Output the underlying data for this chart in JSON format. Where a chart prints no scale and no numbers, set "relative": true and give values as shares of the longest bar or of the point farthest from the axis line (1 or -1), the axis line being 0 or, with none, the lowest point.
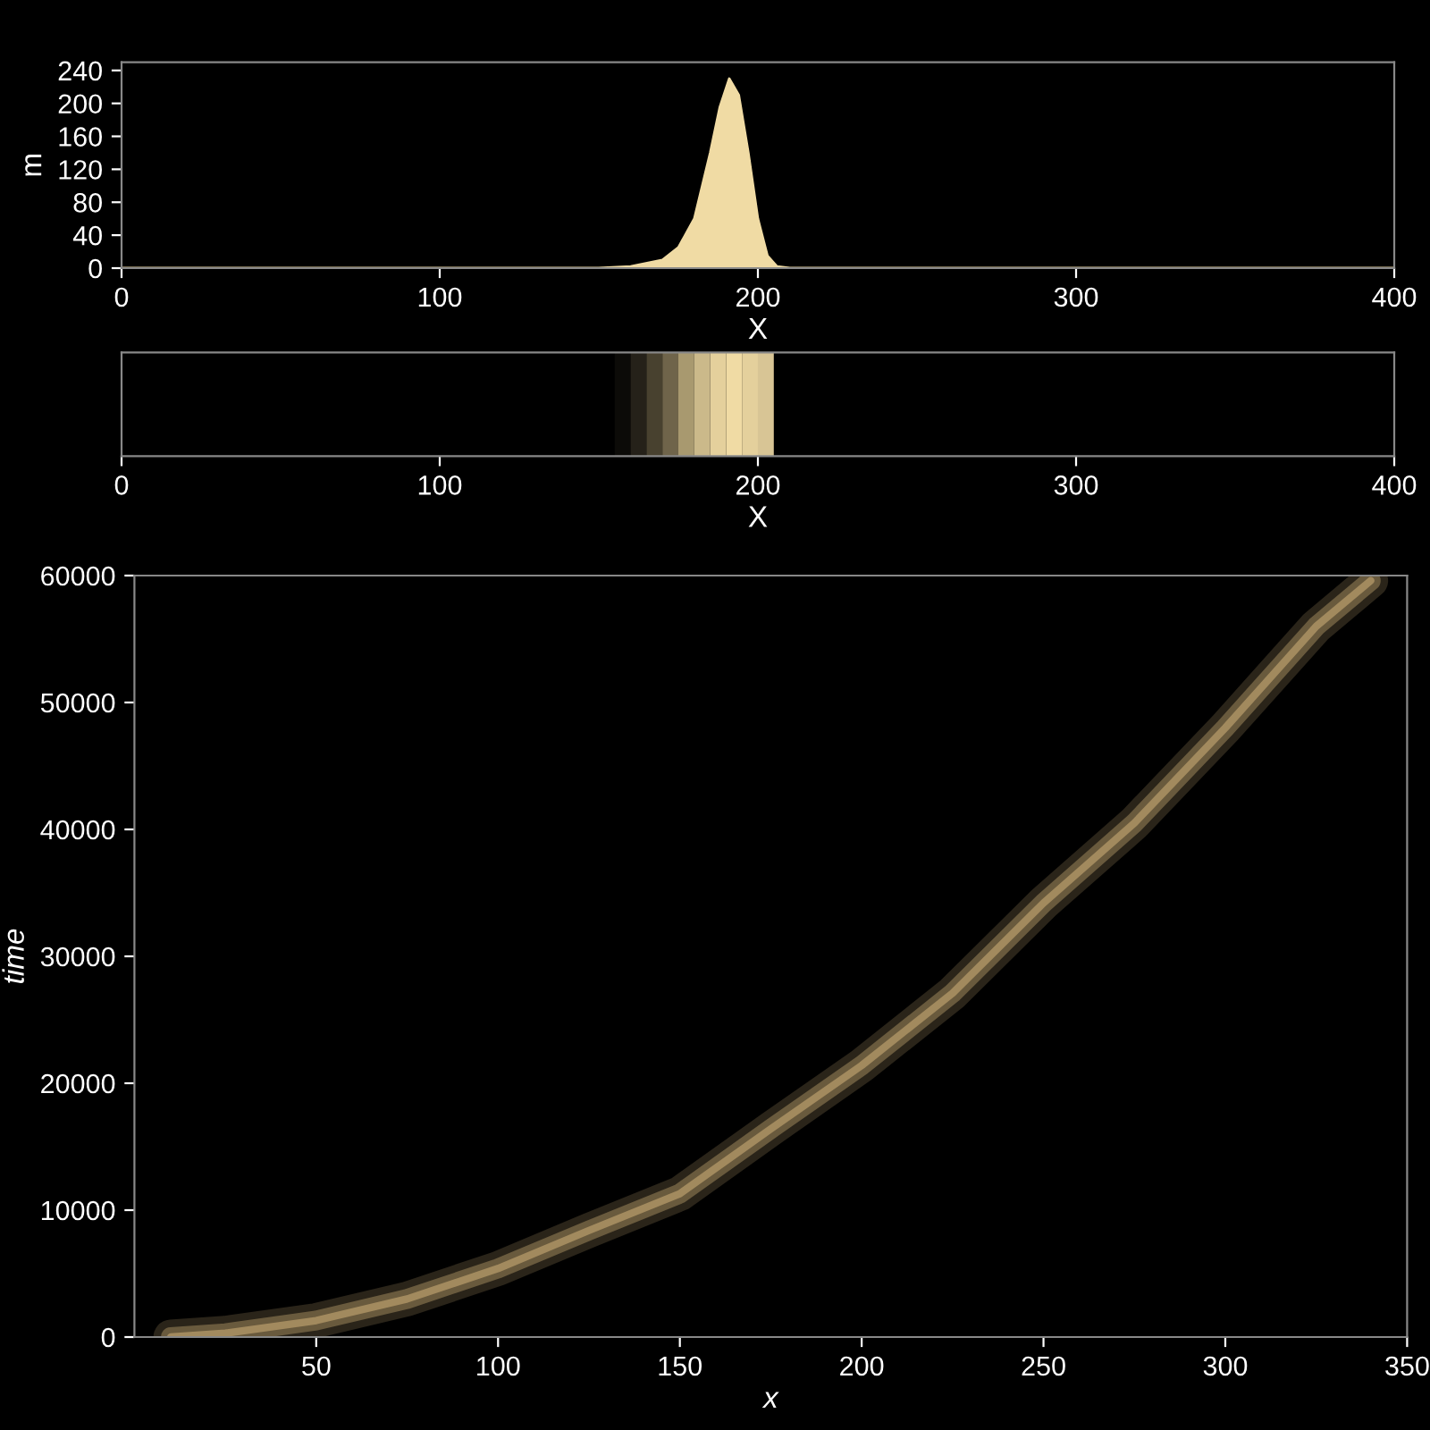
{
  "chart_data": [
    {
      "type": "area",
      "xlabel": "X",
      "ylabel": "m",
      "color": "#f0dba4",
      "x": [
        0,
        150,
        160,
        170,
        175,
        180,
        185,
        188,
        191,
        194,
        197,
        200,
        203,
        206,
        210,
        400
      ],
      "values": [
        0,
        0,
        2,
        10,
        25,
        60,
        140,
        195,
        230,
        210,
        140,
        60,
        15,
        2,
        0,
        0
      ],
      "xlim": [
        0,
        400
      ],
      "xticks": [
        0,
        100,
        200,
        300,
        400
      ],
      "ylim": [
        0,
        250
      ],
      "yticks": [
        0,
        40,
        80,
        120,
        160,
        200,
        240
      ]
    },
    {
      "type": "bar",
      "relative": true,
      "xlabel": "X",
      "x": [
        157.5,
        162.5,
        167.5,
        172.5,
        177.5,
        182.5,
        187.5,
        192.5,
        197.5,
        202.5
      ],
      "values": [
        1,
        1,
        1,
        1,
        1,
        1,
        1,
        1,
        1,
        1
      ],
      "colors": [
        "#0c0b08",
        "#252119",
        "#48412f",
        "#6f644a",
        "#a8996f",
        "#cbb98a",
        "#e4d09c",
        "#f0dba4",
        "#e4d09c",
        "#d8c595"
      ],
      "xlim": [
        0,
        400
      ],
      "xticks": [
        0,
        100,
        200,
        300,
        400
      ],
      "tick_labels": "x"
    },
    {
      "type": "line",
      "xlabel": "x",
      "ylabel": "time",
      "color": "#a88f62",
      "x": [
        10,
        25,
        50,
        75,
        100,
        125,
        150,
        175,
        200,
        225,
        250,
        275,
        300,
        325,
        340
      ],
      "values": [
        0,
        300,
        1300,
        3000,
        5400,
        8400,
        11300,
        16400,
        21400,
        27100,
        34200,
        40500,
        48000,
        56000,
        59600
      ],
      "xlim": [
        0,
        350
      ],
      "xticks": [
        50,
        100,
        150,
        200,
        250,
        300,
        350
      ],
      "ylim": [
        0,
        60000
      ],
      "yticks": [
        0,
        10000,
        20000,
        30000,
        40000,
        50000,
        60000
      ]
    }
  ]
}
